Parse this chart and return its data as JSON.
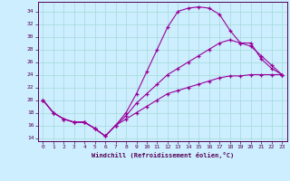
{
  "xlabel": "Windchill (Refroidissement éolien,°C)",
  "background_color": "#cceeff",
  "grid_color": "#aadddd",
  "line_color": "#990099",
  "xlim": [
    -0.5,
    23.5
  ],
  "ylim": [
    13.5,
    35.5
  ],
  "yticks": [
    14,
    16,
    18,
    20,
    22,
    24,
    26,
    28,
    30,
    32,
    34
  ],
  "xticks": [
    0,
    1,
    2,
    3,
    4,
    5,
    6,
    7,
    8,
    9,
    10,
    11,
    12,
    13,
    14,
    15,
    16,
    17,
    18,
    19,
    20,
    21,
    22,
    23
  ],
  "line1_x": [
    0,
    1,
    2,
    3,
    4,
    5,
    6,
    7,
    8,
    9,
    10,
    11,
    12,
    13,
    14,
    15,
    16,
    17,
    18,
    19,
    20,
    21,
    22,
    23
  ],
  "line1_y": [
    20,
    18,
    17,
    16.5,
    16.5,
    15.5,
    14.3,
    16,
    18,
    21,
    24.5,
    28,
    31.5,
    34,
    34.5,
    34.7,
    34.5,
    33.5,
    31,
    29,
    29,
    26.5,
    25,
    24
  ],
  "line2_x": [
    0,
    1,
    2,
    3,
    4,
    5,
    6,
    7,
    8,
    9,
    10,
    11,
    12,
    13,
    14,
    15,
    16,
    17,
    18,
    19,
    20,
    21,
    22,
    23
  ],
  "line2_y": [
    20,
    18,
    17,
    16.5,
    16.5,
    15.5,
    14.3,
    16,
    17.5,
    19.5,
    21,
    22.5,
    24,
    25,
    26,
    27,
    28,
    29,
    29.5,
    29,
    28.5,
    27,
    25.5,
    24
  ],
  "line3_x": [
    0,
    1,
    2,
    3,
    4,
    5,
    6,
    7,
    8,
    9,
    10,
    11,
    12,
    13,
    14,
    15,
    16,
    17,
    18,
    19,
    20,
    21,
    22,
    23
  ],
  "line3_y": [
    20,
    18,
    17,
    16.5,
    16.5,
    15.5,
    14.3,
    16,
    17,
    18,
    19,
    20,
    21,
    21.5,
    22,
    22.5,
    23,
    23.5,
    23.8,
    23.8,
    24,
    24,
    24,
    24
  ]
}
